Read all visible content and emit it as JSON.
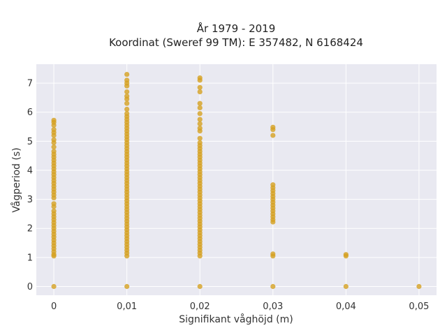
{
  "chart_data": {
    "type": "scatter",
    "title_lines": [
      "År 1979 - 2019",
      "Koordinat (Sweref 99 TM): E 357482, N 6168424"
    ],
    "xlabel": "Signifikant våghöjd (m)",
    "ylabel": "Vågperiod (s)",
    "xlim": [
      -0.0024,
      0.0524
    ],
    "ylim": [
      -0.3,
      7.65
    ],
    "x_ticks": [
      0,
      0.01,
      0.02,
      0.03,
      0.04,
      0.05
    ],
    "x_tick_labels": [
      "0",
      "0,01",
      "0,02",
      "0,03",
      "0,04",
      "0,05"
    ],
    "y_ticks": [
      0,
      1,
      2,
      3,
      4,
      5,
      6,
      7
    ],
    "y_tick_labels": [
      "0",
      "1",
      "2",
      "3",
      "4",
      "5",
      "6",
      "7"
    ],
    "grid": true,
    "background": "#e9e9f1",
    "marker_color": "#d4a020",
    "series": [
      {
        "points": [
          [
            0,
            0.0
          ],
          [
            0,
            1.05
          ],
          [
            0,
            1.1
          ],
          [
            0,
            1.2
          ],
          [
            0,
            1.3
          ],
          [
            0,
            1.4
          ],
          [
            0,
            1.5
          ],
          [
            0,
            1.6
          ],
          [
            0,
            1.7
          ],
          [
            0,
            1.8
          ],
          [
            0,
            1.9
          ],
          [
            0,
            2.0
          ],
          [
            0,
            2.1
          ],
          [
            0,
            2.2
          ],
          [
            0,
            2.3
          ],
          [
            0,
            2.4
          ],
          [
            0,
            2.5
          ],
          [
            0,
            2.6
          ],
          [
            0,
            2.75
          ],
          [
            0,
            2.85
          ],
          [
            0,
            3.05
          ],
          [
            0,
            3.15
          ],
          [
            0,
            3.25
          ],
          [
            0,
            3.35
          ],
          [
            0,
            3.45
          ],
          [
            0,
            3.55
          ],
          [
            0,
            3.65
          ],
          [
            0,
            3.75
          ],
          [
            0,
            3.85
          ],
          [
            0,
            3.95
          ],
          [
            0,
            4.05
          ],
          [
            0,
            4.15
          ],
          [
            0,
            4.25
          ],
          [
            0,
            4.35
          ],
          [
            0,
            4.45
          ],
          [
            0,
            4.55
          ],
          [
            0,
            4.65
          ],
          [
            0,
            4.8
          ],
          [
            0,
            4.95
          ],
          [
            0,
            5.05
          ],
          [
            0,
            5.2
          ],
          [
            0,
            5.3
          ],
          [
            0,
            5.4
          ],
          [
            0,
            5.55
          ],
          [
            0,
            5.65
          ],
          [
            0,
            5.72
          ],
          [
            0.01,
            0.0
          ],
          [
            0.01,
            1.05
          ],
          [
            0.01,
            1.15
          ],
          [
            0.01,
            1.25
          ],
          [
            0.01,
            1.35
          ],
          [
            0.01,
            1.45
          ],
          [
            0.01,
            1.55
          ],
          [
            0.01,
            1.65
          ],
          [
            0.01,
            1.75
          ],
          [
            0.01,
            1.85
          ],
          [
            0.01,
            1.95
          ],
          [
            0.01,
            2.05
          ],
          [
            0.01,
            2.15
          ],
          [
            0.01,
            2.25
          ],
          [
            0.01,
            2.35
          ],
          [
            0.01,
            2.45
          ],
          [
            0.01,
            2.55
          ],
          [
            0.01,
            2.65
          ],
          [
            0.01,
            2.75
          ],
          [
            0.01,
            2.85
          ],
          [
            0.01,
            2.95
          ],
          [
            0.01,
            3.05
          ],
          [
            0.01,
            3.15
          ],
          [
            0.01,
            3.25
          ],
          [
            0.01,
            3.35
          ],
          [
            0.01,
            3.45
          ],
          [
            0.01,
            3.55
          ],
          [
            0.01,
            3.65
          ],
          [
            0.01,
            3.75
          ],
          [
            0.01,
            3.85
          ],
          [
            0.01,
            3.95
          ],
          [
            0.01,
            4.05
          ],
          [
            0.01,
            4.15
          ],
          [
            0.01,
            4.25
          ],
          [
            0.01,
            4.35
          ],
          [
            0.01,
            4.45
          ],
          [
            0.01,
            4.55
          ],
          [
            0.01,
            4.65
          ],
          [
            0.01,
            4.75
          ],
          [
            0.01,
            4.85
          ],
          [
            0.01,
            4.95
          ],
          [
            0.01,
            5.05
          ],
          [
            0.01,
            5.15
          ],
          [
            0.01,
            5.25
          ],
          [
            0.01,
            5.35
          ],
          [
            0.01,
            5.45
          ],
          [
            0.01,
            5.55
          ],
          [
            0.01,
            5.65
          ],
          [
            0.01,
            5.75
          ],
          [
            0.01,
            5.85
          ],
          [
            0.01,
            5.95
          ],
          [
            0.01,
            6.1
          ],
          [
            0.01,
            6.3
          ],
          [
            0.01,
            6.45
          ],
          [
            0.01,
            6.55
          ],
          [
            0.01,
            6.7
          ],
          [
            0.01,
            6.9
          ],
          [
            0.01,
            7.0
          ],
          [
            0.01,
            7.1
          ],
          [
            0.01,
            7.3
          ],
          [
            0.02,
            0.0
          ],
          [
            0.02,
            1.05
          ],
          [
            0.02,
            1.15
          ],
          [
            0.02,
            1.25
          ],
          [
            0.02,
            1.35
          ],
          [
            0.02,
            1.45
          ],
          [
            0.02,
            1.55
          ],
          [
            0.02,
            1.65
          ],
          [
            0.02,
            1.75
          ],
          [
            0.02,
            1.85
          ],
          [
            0.02,
            1.95
          ],
          [
            0.02,
            2.05
          ],
          [
            0.02,
            2.15
          ],
          [
            0.02,
            2.25
          ],
          [
            0.02,
            2.35
          ],
          [
            0.02,
            2.45
          ],
          [
            0.02,
            2.55
          ],
          [
            0.02,
            2.65
          ],
          [
            0.02,
            2.75
          ],
          [
            0.02,
            2.85
          ],
          [
            0.02,
            2.95
          ],
          [
            0.02,
            3.05
          ],
          [
            0.02,
            3.15
          ],
          [
            0.02,
            3.25
          ],
          [
            0.02,
            3.35
          ],
          [
            0.02,
            3.45
          ],
          [
            0.02,
            3.55
          ],
          [
            0.02,
            3.65
          ],
          [
            0.02,
            3.75
          ],
          [
            0.02,
            3.85
          ],
          [
            0.02,
            3.95
          ],
          [
            0.02,
            4.05
          ],
          [
            0.02,
            4.15
          ],
          [
            0.02,
            4.25
          ],
          [
            0.02,
            4.35
          ],
          [
            0.02,
            4.45
          ],
          [
            0.02,
            4.55
          ],
          [
            0.02,
            4.65
          ],
          [
            0.02,
            4.75
          ],
          [
            0.02,
            4.85
          ],
          [
            0.02,
            4.95
          ],
          [
            0.02,
            5.1
          ],
          [
            0.02,
            5.35
          ],
          [
            0.02,
            5.45
          ],
          [
            0.02,
            5.6
          ],
          [
            0.02,
            5.75
          ],
          [
            0.02,
            5.95
          ],
          [
            0.02,
            6.15
          ],
          [
            0.02,
            6.3
          ],
          [
            0.02,
            6.7
          ],
          [
            0.02,
            6.85
          ],
          [
            0.02,
            7.1
          ],
          [
            0.02,
            7.18
          ],
          [
            0.03,
            0.0
          ],
          [
            0.03,
            1.05
          ],
          [
            0.03,
            1.12
          ],
          [
            0.03,
            2.22
          ],
          [
            0.03,
            2.3
          ],
          [
            0.03,
            2.4
          ],
          [
            0.03,
            2.5
          ],
          [
            0.03,
            2.6
          ],
          [
            0.03,
            2.7
          ],
          [
            0.03,
            2.8
          ],
          [
            0.03,
            2.9
          ],
          [
            0.03,
            3.0
          ],
          [
            0.03,
            3.1
          ],
          [
            0.03,
            3.2
          ],
          [
            0.03,
            3.3
          ],
          [
            0.03,
            3.4
          ],
          [
            0.03,
            3.5
          ],
          [
            0.03,
            5.2
          ],
          [
            0.03,
            5.4
          ],
          [
            0.03,
            5.48
          ],
          [
            0.04,
            0.0
          ],
          [
            0.04,
            1.05
          ],
          [
            0.04,
            1.1
          ],
          [
            0.05,
            0.0
          ]
        ]
      }
    ]
  }
}
